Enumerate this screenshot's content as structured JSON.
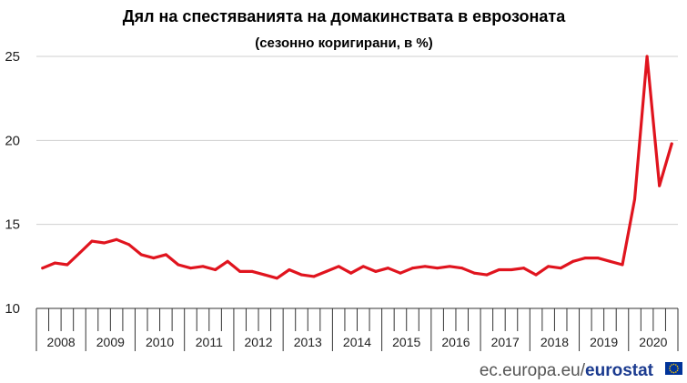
{
  "colors": {
    "series": "#e0141e",
    "grid": "#cfcfcf",
    "axis": "#333333",
    "brand": "#1a3a8f",
    "flag_blue": "#003399",
    "flag_star": "#ffcc00"
  },
  "footer": {
    "source_text": "ec.europa.eu/",
    "brand_text": "eurostat",
    "logo_icon": "eu-flag-icon"
  },
  "chart_data": {
    "type": "line",
    "title": "Дял на спестяванията на домакинствата в еврозоната",
    "subtitle": "(сезонно коригирани, в %)",
    "xlabel": "",
    "ylabel": "",
    "ylim": [
      10,
      25
    ],
    "yticks": [
      10,
      15,
      20,
      25
    ],
    "grid": true,
    "legend": "none",
    "years": [
      "2008",
      "2009",
      "2010",
      "2011",
      "2012",
      "2013",
      "2014",
      "2015",
      "2016",
      "2017",
      "2018",
      "2019",
      "2020"
    ],
    "quarters_per_year": 4,
    "series": [
      {
        "values": [
          12.4,
          12.7,
          12.6,
          13.3,
          14.0,
          13.9,
          14.1,
          13.8,
          13.2,
          13.0,
          13.2,
          12.6,
          12.4,
          12.5,
          12.3,
          12.8,
          12.2,
          12.2,
          12.0,
          11.8,
          12.3,
          12.0,
          11.9,
          12.2,
          12.5,
          12.1,
          12.5,
          12.2,
          12.4,
          12.1,
          12.4,
          12.5,
          12.4,
          12.5,
          12.4,
          12.1,
          12.0,
          12.3,
          12.3,
          12.4,
          12.0,
          12.5,
          12.4,
          12.8,
          13.0,
          13.0,
          12.8,
          12.6,
          16.5,
          25.0,
          17.3,
          19.8
        ]
      }
    ]
  }
}
